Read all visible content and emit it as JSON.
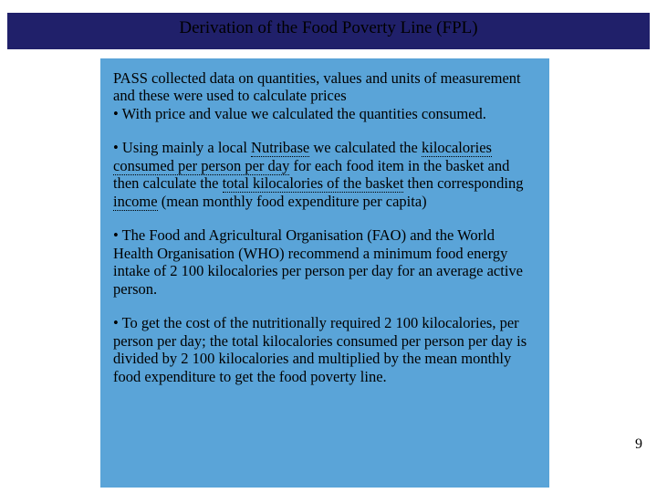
{
  "title": "Derivation of the Food Poverty Line (FPL)",
  "para1a": "PASS collected data on quantities, values and units of measurement and these were used to calculate prices",
  "para1b": "• With price and value we calculated the quantities consumed.",
  "para2a": "• Using mainly  a local ",
  "para2_u1": "Nutribase",
  "para2b": " we calculated the ",
  "para2_u2": "kilocalories consumed per person per day",
  "para2c": " for each food item in the basket and  then calculate the ",
  "para2_u3": "total kilocalories of the basket",
  "para2d": " then corresponding  ",
  "para2_u4": "income",
  "para2e": " (mean monthly food  expenditure per capita)",
  "para3": "• The Food and Agricultural Organisation (FAO) and the World Health Organisation (WHO) recommend a minimum food energy intake of 2 100 kilocalories per person per day for an average active person.",
  "para4": "• To get the cost of the nutritionally required 2 100 kilocalories, per person per day; the total kilocalories consumed per person per day is divided by 2 100 kilocalories and multiplied by the mean monthly food expenditure to get the food poverty line.",
  "pageNumber": "9",
  "colors": {
    "titleBar": "#20206a",
    "contentBg": "#5aa4d8",
    "pageBg": "#ffffff",
    "text": "#000000"
  },
  "fonts": {
    "family": "Times New Roman",
    "title_size_pt": 19,
    "body_size_pt": 16.5
  }
}
